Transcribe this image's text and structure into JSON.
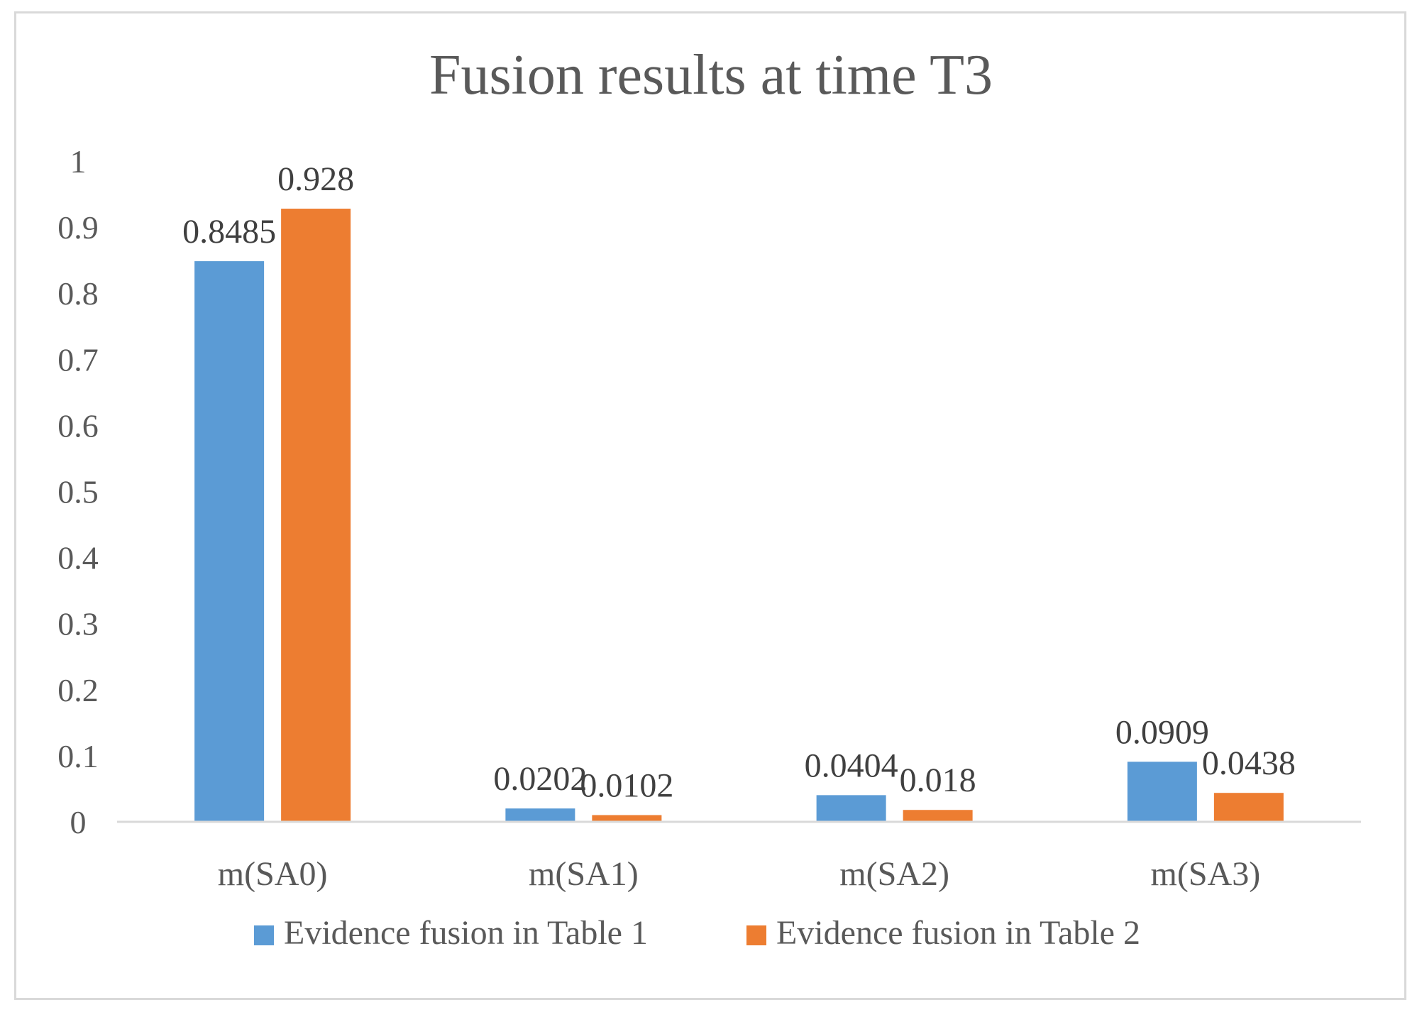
{
  "colors": {
    "series1": "#5b9bd5",
    "series2": "#ed7d31",
    "axis": "#d9d9d9",
    "text": "#595959"
  },
  "chart_data": {
    "type": "bar",
    "title": "Fusion results  at time  T3",
    "xlabel": "",
    "ylabel": "",
    "ylim": [
      0,
      1
    ],
    "yticks": [
      "0",
      "0.1",
      "0.2",
      "0.3",
      "0.4",
      "0.5",
      "0.6",
      "0.7",
      "0.8",
      "0.9",
      "1"
    ],
    "categories": [
      "m(SA0)",
      "m(SA1)",
      "m(SA2)",
      "m(SA3)"
    ],
    "series": [
      {
        "name": "Evidence fusion in Table 1",
        "values": [
          0.8485,
          0.0202,
          0.0404,
          0.0909
        ],
        "labels": [
          "0.8485",
          "0.0202",
          "0.0404",
          "0.0909"
        ]
      },
      {
        "name": "Evidence fusion in Table 2",
        "values": [
          0.928,
          0.0102,
          0.018,
          0.0438
        ],
        "labels": [
          "0.928",
          "0.0102",
          "0.018",
          "0.0438"
        ]
      }
    ],
    "grid": false,
    "legend": "bottom"
  }
}
